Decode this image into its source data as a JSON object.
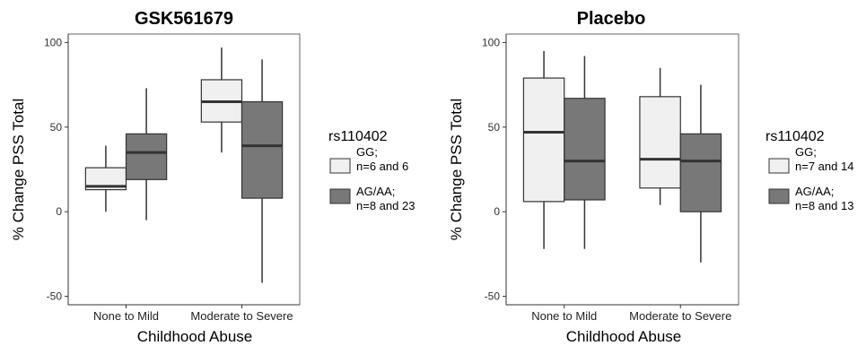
{
  "colors": {
    "gg_fill": "#f0f0f0",
    "ag_fill": "#787878",
    "stroke": "#333333",
    "panel_border": "#666666"
  },
  "chart_data": [
    {
      "type": "box",
      "title": "GSK561679",
      "xlabel": "Childhood Abuse",
      "ylabel": "% Change PSS Total",
      "ylim": [
        -55,
        105
      ],
      "yticks": [
        -50,
        0,
        50,
        100
      ],
      "ytick_labels": [
        "-50",
        "0",
        "50",
        "100"
      ],
      "categories": [
        "None to Mild",
        "Moderate to Severe"
      ],
      "legend": {
        "title": "rs110402",
        "entries": [
          {
            "line1": "GG;",
            "line2": "n=6 and 6",
            "color": "#f0f0f0"
          },
          {
            "line1": "AG/AA;",
            "line2": "n=8 and 23",
            "color": "#787878"
          }
        ]
      },
      "series": [
        {
          "name": "GG",
          "boxes": [
            {
              "min": 0,
              "q1": 13,
              "median": 15,
              "q3": 26,
              "max": 39
            },
            {
              "min": 35,
              "q1": 53,
              "median": 65,
              "q3": 78,
              "max": 97
            }
          ]
        },
        {
          "name": "AG/AA",
          "boxes": [
            {
              "min": -5,
              "q1": 19,
              "median": 35,
              "q3": 46,
              "max": 73
            },
            {
              "min": -42,
              "q1": 8,
              "median": 39,
              "q3": 65,
              "max": 90
            }
          ]
        }
      ]
    },
    {
      "type": "box",
      "title": "Placebo",
      "xlabel": "Childhood Abuse",
      "ylabel": "% Change PSS Total",
      "ylim": [
        -55,
        105
      ],
      "yticks": [
        -50,
        0,
        50,
        100
      ],
      "ytick_labels": [
        "-50",
        "0",
        "50",
        "100"
      ],
      "categories": [
        "None to Mild",
        "Moderate to Severe"
      ],
      "legend": {
        "title": "rs110402",
        "entries": [
          {
            "line1": "GG;",
            "line2": "n=7 and 14",
            "color": "#f0f0f0"
          },
          {
            "line1": "AG/AA;",
            "line2": "n=8 and 13",
            "color": "#787878"
          }
        ]
      },
      "series": [
        {
          "name": "GG",
          "boxes": [
            {
              "min": -22,
              "q1": 6,
              "median": 47,
              "q3": 79,
              "max": 95
            },
            {
              "min": 4,
              "q1": 14,
              "median": 31,
              "q3": 68,
              "max": 85
            }
          ]
        },
        {
          "name": "AG/AA",
          "boxes": [
            {
              "min": -22,
              "q1": 7,
              "median": 30,
              "q3": 67,
              "max": 92
            },
            {
              "min": -30,
              "q1": 0,
              "median": 30,
              "q3": 46,
              "max": 75
            }
          ]
        }
      ]
    }
  ]
}
